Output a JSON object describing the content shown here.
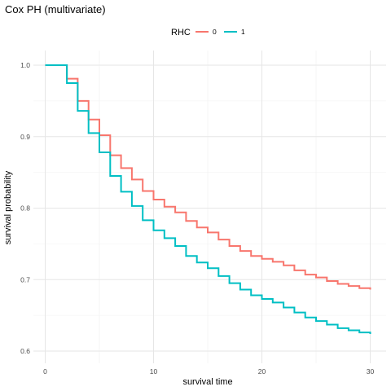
{
  "chart_data": {
    "type": "line",
    "step": true,
    "title": "Cox PH (multivariate)",
    "xlabel": "survival time",
    "ylabel": "survival probability",
    "xlim": [
      0,
      30
    ],
    "ylim": [
      0.6,
      1.0
    ],
    "x_ticks": [
      0,
      10,
      20,
      30
    ],
    "y_ticks": [
      0.6,
      0.7,
      0.8,
      0.9,
      1.0
    ],
    "y_tick_labels": [
      "0.6",
      "0.7",
      "0.8",
      "0.9",
      "1.0"
    ],
    "grid": true,
    "legend": {
      "title": "RHC",
      "position": "top"
    },
    "series": [
      {
        "name": "0",
        "color": "#F8766D",
        "x": [
          0,
          2,
          3,
          4,
          5,
          6,
          7,
          8,
          9,
          10,
          11,
          12,
          13,
          14,
          15,
          16,
          17,
          18,
          19,
          20,
          21,
          22,
          23,
          24,
          25,
          26,
          27,
          28,
          29,
          30
        ],
        "values": [
          1.0,
          0.981,
          0.95,
          0.924,
          0.902,
          0.874,
          0.856,
          0.84,
          0.824,
          0.812,
          0.802,
          0.794,
          0.782,
          0.773,
          0.766,
          0.756,
          0.747,
          0.74,
          0.733,
          0.729,
          0.725,
          0.72,
          0.713,
          0.707,
          0.703,
          0.698,
          0.694,
          0.691,
          0.688,
          0.686
        ]
      },
      {
        "name": "1",
        "color": "#00BFC4",
        "x": [
          0,
          2,
          3,
          4,
          5,
          6,
          7,
          8,
          9,
          10,
          11,
          12,
          13,
          14,
          15,
          16,
          17,
          18,
          19,
          20,
          21,
          22,
          23,
          24,
          25,
          26,
          27,
          28,
          29,
          30
        ],
        "values": [
          1.0,
          0.975,
          0.936,
          0.905,
          0.878,
          0.845,
          0.823,
          0.803,
          0.783,
          0.769,
          0.758,
          0.747,
          0.733,
          0.724,
          0.716,
          0.705,
          0.695,
          0.686,
          0.678,
          0.673,
          0.668,
          0.661,
          0.654,
          0.647,
          0.642,
          0.637,
          0.632,
          0.629,
          0.626,
          0.624
        ]
      }
    ]
  }
}
